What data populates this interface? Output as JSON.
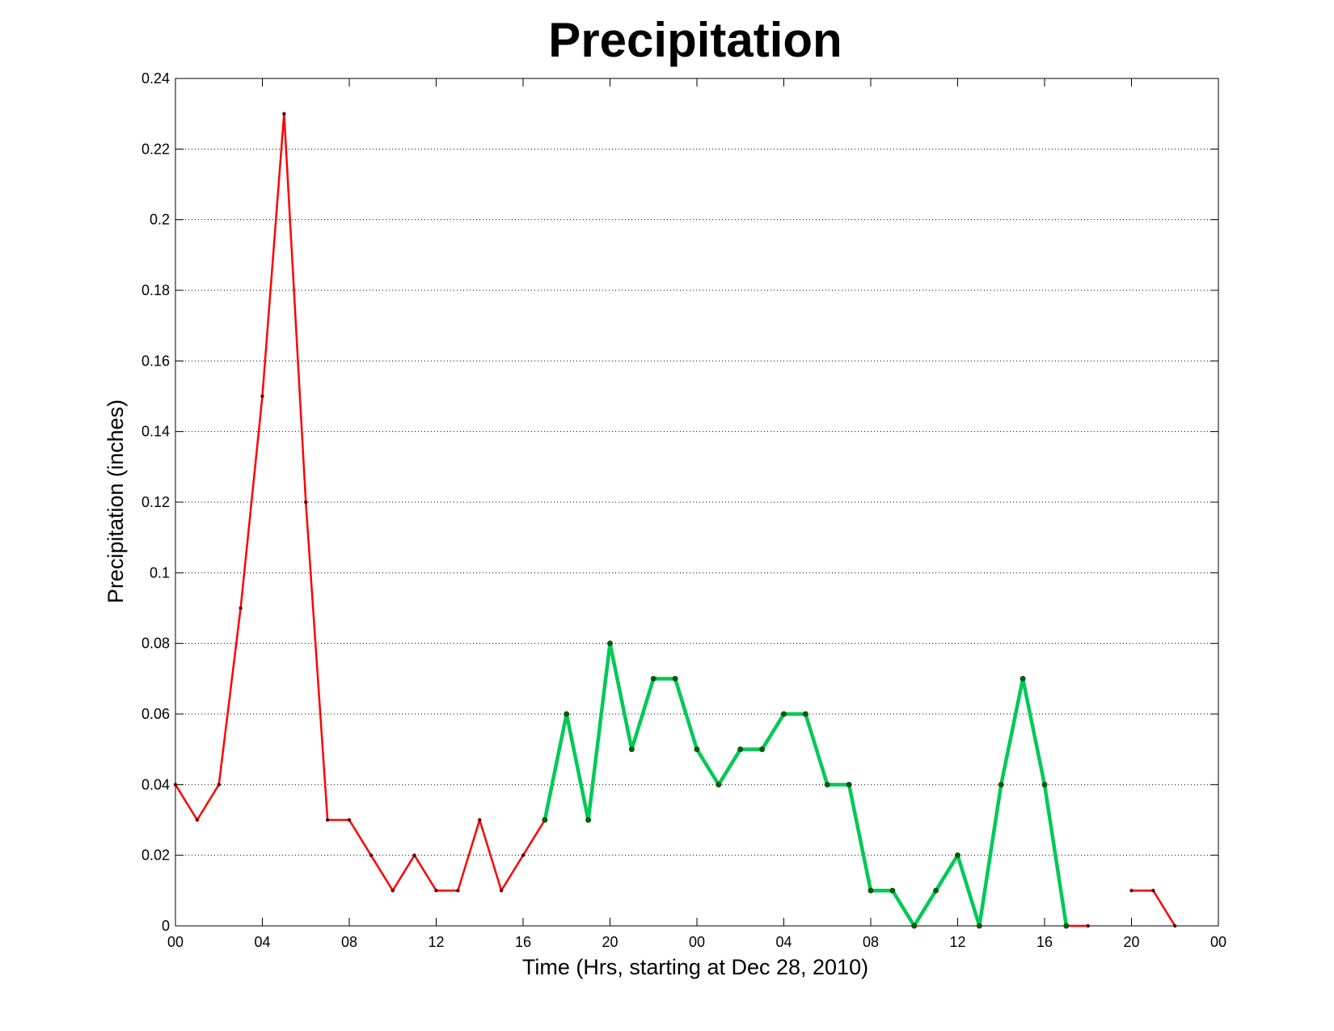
{
  "chart_data": {
    "type": "line",
    "title": "Precipitation",
    "xlabel": "Time (Hrs, starting at Dec 28, 2010)",
    "ylabel": "Precipitation (inches)",
    "xlim": [
      0,
      48
    ],
    "ylim": [
      0,
      0.24
    ],
    "x_ticks": [
      0,
      4,
      8,
      12,
      16,
      20,
      24,
      28,
      32,
      36,
      40,
      44,
      48
    ],
    "x_tick_labels": [
      "00",
      "04",
      "08",
      "12",
      "16",
      "20",
      "00",
      "04",
      "08",
      "12",
      "16",
      "20",
      "00"
    ],
    "y_ticks": [
      0,
      0.02,
      0.04,
      0.06,
      0.08,
      0.1,
      0.12,
      0.14,
      0.16,
      0.18,
      0.2,
      0.22,
      0.24
    ],
    "y_tick_labels": [
      "0",
      "0.02",
      "0.04",
      "0.06",
      "0.08",
      "0.1",
      "0.12",
      "0.14",
      "0.16",
      "0.18",
      "0.2",
      "0.22",
      "0.24"
    ],
    "grid": true,
    "grid_style": "dotted",
    "series": [
      {
        "color": "#ff0000",
        "marker_color": "#5a0000",
        "stroke": "thin",
        "segments": [
          {
            "x": [
              0,
              1,
              2,
              3,
              4,
              5,
              6,
              7,
              8,
              9,
              10,
              11,
              12,
              13,
              14,
              15,
              16,
              17
            ],
            "y": [
              0.04,
              0.03,
              0.04,
              0.09,
              0.15,
              0.23,
              0.12,
              0.03,
              0.03,
              0.02,
              0.01,
              0.02,
              0.01,
              0.01,
              0.03,
              0.01,
              0.02,
              0.03
            ]
          },
          {
            "x": [
              41,
              42
            ],
            "y": [
              0,
              0
            ]
          },
          {
            "x": [
              44,
              45,
              46
            ],
            "y": [
              0.01,
              0.01,
              0
            ]
          }
        ]
      },
      {
        "color": "#00c957",
        "marker_color": "#0a5a0a",
        "stroke": "thick",
        "segments": [
          {
            "x": [
              17,
              18,
              19,
              20,
              21,
              22,
              23,
              24,
              25,
              26,
              27,
              28,
              29,
              30,
              31,
              32,
              33,
              34,
              35,
              36,
              37,
              38,
              39,
              40,
              41
            ],
            "y": [
              0.03,
              0.06,
              0.03,
              0.08,
              0.05,
              0.07,
              0.07,
              0.05,
              0.04,
              0.05,
              0.05,
              0.06,
              0.06,
              0.04,
              0.04,
              0.01,
              0.01,
              0,
              0.01,
              0.02,
              0,
              0.04,
              0.07,
              0.04,
              0
            ]
          }
        ]
      }
    ]
  }
}
